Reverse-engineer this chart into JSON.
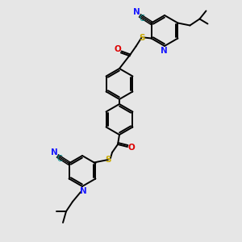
{
  "background_color": "#e6e6e6",
  "N_color": "#1a1aff",
  "C_color": "#009090",
  "S_color": "#c8a800",
  "O_color": "#dd0000",
  "bond_color": "#000000",
  "lw": 1.4,
  "figsize": [
    3.0,
    3.0
  ],
  "dpi": 100,
  "xlim": [
    0,
    300
  ],
  "ylim": [
    0,
    300
  ]
}
